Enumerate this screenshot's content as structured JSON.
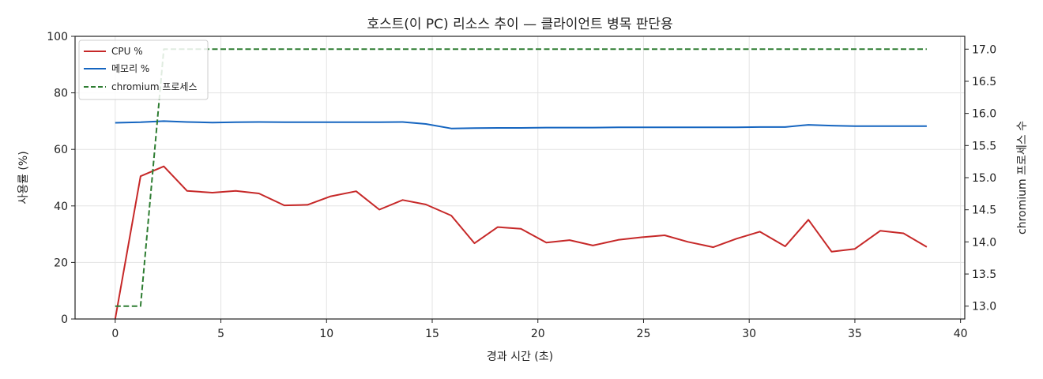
{
  "chart_data": {
    "type": "line",
    "title": "호스트(이 PC) 리소스 추이 — 클라이언트 병목 판단용",
    "xlabel": "경과 시간 (초)",
    "ylabel": "사용률 (%)",
    "y2label": "chromium 프로세스 수",
    "xlim": [
      -1.9,
      40.2
    ],
    "ylim": [
      0,
      100
    ],
    "y2lim": [
      12.8,
      17.2
    ],
    "xticks": [
      0,
      5,
      10,
      15,
      20,
      25,
      30,
      35,
      40
    ],
    "yticks": [
      0,
      20,
      40,
      60,
      80,
      100
    ],
    "y2ticks": [
      13.0,
      13.5,
      14.0,
      14.5,
      15.0,
      15.5,
      16.0,
      16.5,
      17.0
    ],
    "grid": true,
    "legend_position": "top-left",
    "x": [
      0.0,
      1.2,
      2.3,
      3.4,
      4.6,
      5.7,
      6.8,
      8.0,
      9.1,
      10.2,
      11.4,
      12.5,
      13.6,
      14.7,
      15.9,
      17.0,
      18.1,
      19.2,
      20.4,
      21.5,
      22.6,
      23.8,
      24.9,
      26.0,
      27.1,
      28.3,
      29.4,
      30.5,
      31.7,
      32.8,
      33.9,
      35.0,
      36.2,
      37.3,
      38.4
    ],
    "series": [
      {
        "name": "CPU %",
        "axis": "left",
        "color": "#c62828",
        "dashed": false,
        "values": [
          0,
          50.5,
          54.0,
          45.3,
          44.7,
          45.3,
          44.4,
          40.2,
          40.4,
          43.4,
          45.2,
          38.7,
          42.1,
          40.5,
          36.6,
          26.8,
          32.5,
          31.9,
          27.0,
          27.9,
          26.0,
          28.0,
          28.9,
          29.6,
          27.3,
          25.4,
          28.4,
          30.9,
          25.7,
          35.1,
          23.8,
          24.8,
          31.2,
          30.3,
          25.5
        ]
      },
      {
        "name": "메모리 %",
        "axis": "left",
        "color": "#1565c0",
        "dashed": false,
        "values": [
          69.4,
          69.6,
          70.0,
          69.7,
          69.5,
          69.6,
          69.7,
          69.6,
          69.6,
          69.6,
          69.6,
          69.6,
          69.7,
          69.0,
          67.4,
          67.5,
          67.6,
          67.6,
          67.7,
          67.7,
          67.7,
          67.8,
          67.8,
          67.8,
          67.8,
          67.8,
          67.8,
          67.9,
          67.9,
          68.7,
          68.4,
          68.2,
          68.2,
          68.2,
          68.2
        ]
      },
      {
        "name": "chromium 프로세스",
        "axis": "right",
        "color": "#2e7d32",
        "dashed": true,
        "values": [
          13,
          13,
          17,
          17,
          17,
          17,
          17,
          17,
          17,
          17,
          17,
          17,
          17,
          17,
          17,
          17,
          17,
          17,
          17,
          17,
          17,
          17,
          17,
          17,
          17,
          17,
          17,
          17,
          17,
          17,
          17,
          17,
          17,
          17,
          17
        ]
      }
    ]
  }
}
